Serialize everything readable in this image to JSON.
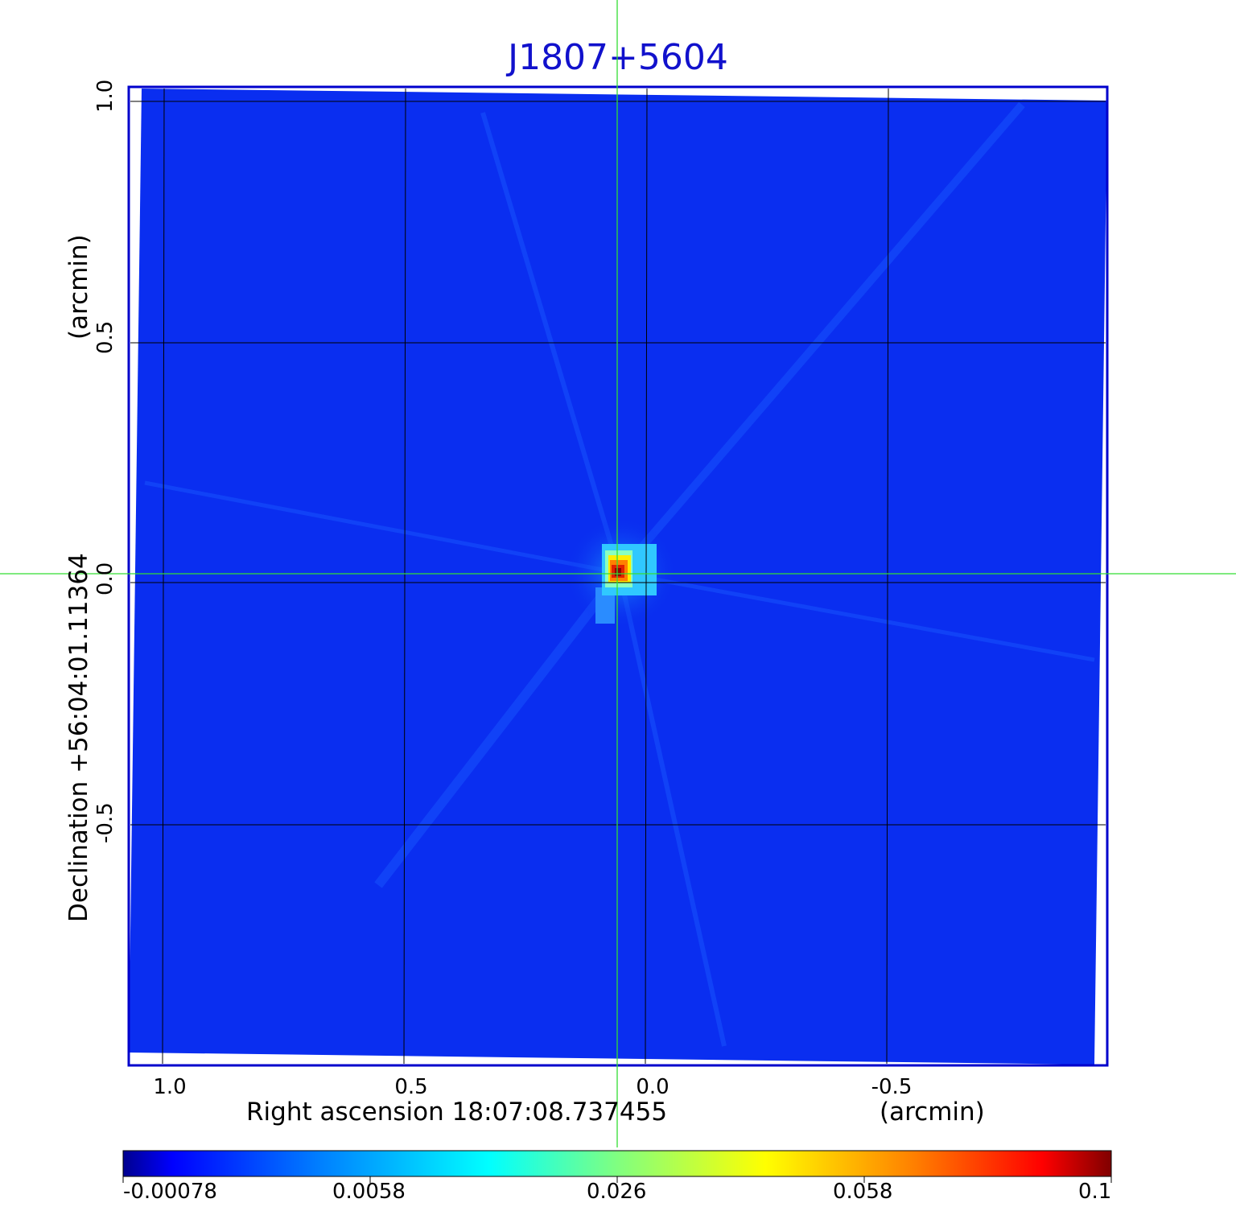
{
  "title": "J1807+5604",
  "axes": {
    "x_label": "Right ascension  18:07:08.737455",
    "x_unit": "(arcmin)",
    "x_ticks": [
      "1.0",
      "0.5",
      "0.0",
      "-0.5"
    ],
    "y_label": "Declination  +56:04:01.11364",
    "y_unit": "(arcmin)",
    "y_ticks": [
      "1.0",
      "0.5",
      "0.0",
      "-0.5"
    ]
  },
  "colorbar": {
    "ticks": [
      "-0.00078",
      "0.0058",
      "0.026",
      "0.058",
      "0.1"
    ],
    "colormap": [
      "#00008f",
      "#0000ff",
      "#0080ff",
      "#00ffff",
      "#80ff80",
      "#ffff00",
      "#ff8000",
      "#ff0000",
      "#800000"
    ]
  },
  "colors": {
    "background_map": "#0a2ef0",
    "frame": "#0000cc",
    "crosshair": "#33dd33",
    "grid": "#000000"
  }
}
